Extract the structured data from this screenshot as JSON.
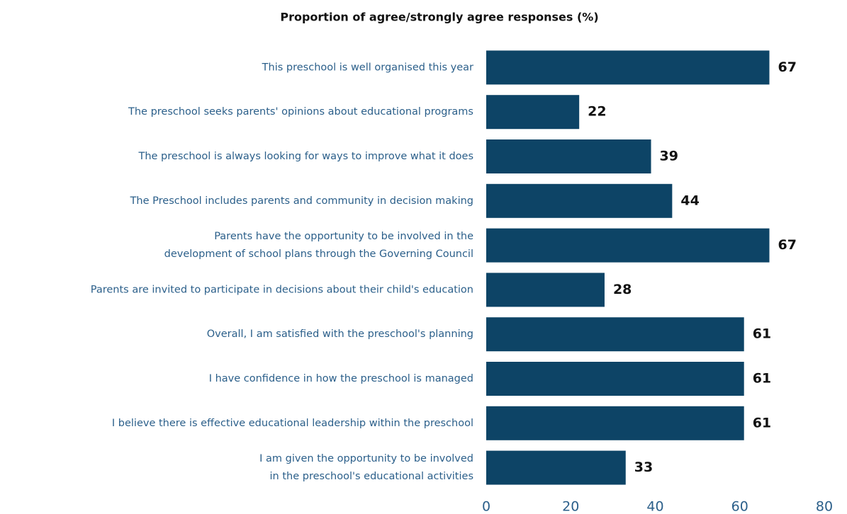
{
  "chart_data": {
    "type": "barh",
    "title": "Proportion of agree/strongly agree responses (%)",
    "categories": [
      [
        "This preschool is well organised this year"
      ],
      [
        "The preschool seeks parents' opinions about educational programs"
      ],
      [
        "The preschool is always looking for ways to improve what it does"
      ],
      [
        "The Preschool includes parents and community in decision making"
      ],
      [
        "Parents have the opportunity to be involved in the",
        "development of school plans through the Governing Council"
      ],
      [
        "Parents are invited to participate in decisions about their child's education"
      ],
      [
        "Overall, I am satisfied with the preschool's planning"
      ],
      [
        "I have confidence in how the preschool is managed"
      ],
      [
        "I believe there is effective educational leadership within the preschool"
      ],
      [
        "I am given the opportunity to be involved",
        "in the preschool's educational activities"
      ]
    ],
    "values": [
      67,
      22,
      39,
      44,
      67,
      28,
      61,
      61,
      61,
      33
    ],
    "color": "#0d4466",
    "xlim": [
      0,
      80
    ],
    "xticks": [
      0,
      20,
      40,
      60,
      80
    ],
    "grid": false
  }
}
